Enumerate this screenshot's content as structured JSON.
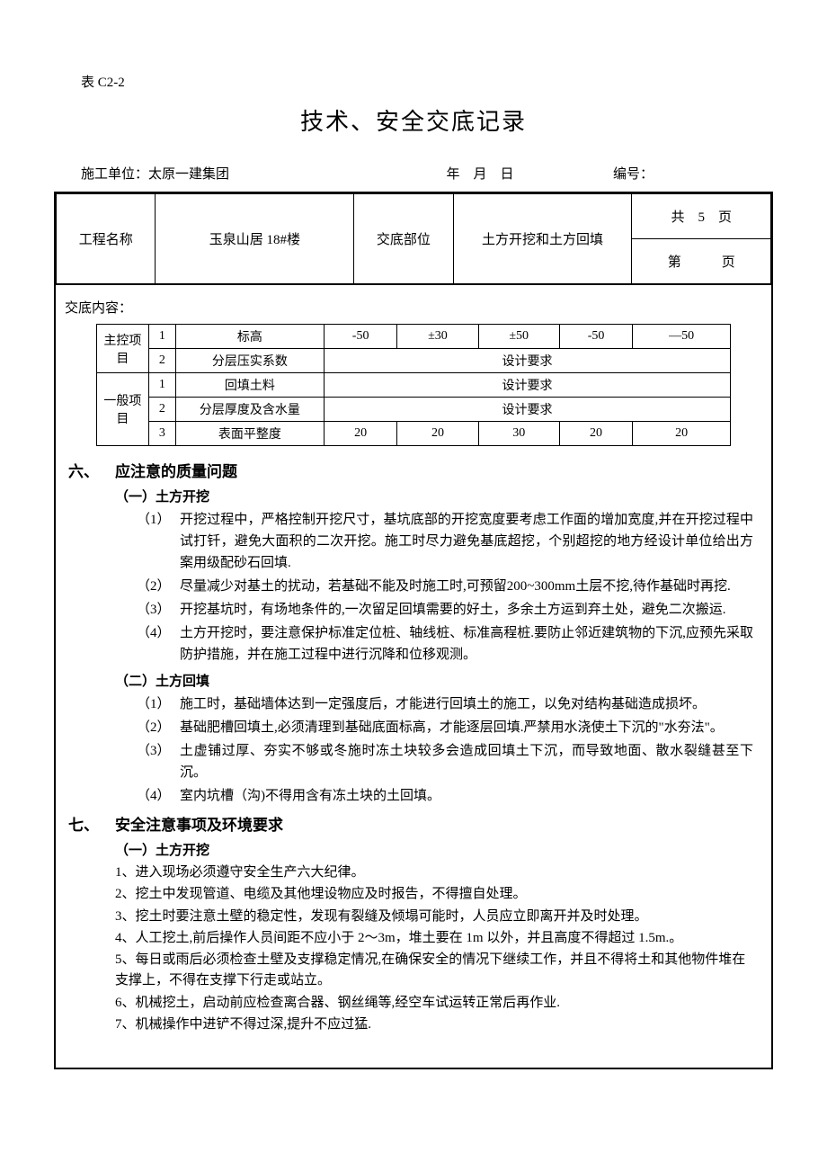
{
  "formCode": "表 C2-2",
  "title": "技术、安全交底记录",
  "infoRow": {
    "unitLabel": "施工单位：",
    "unitValue": "太原一建集团",
    "date": "年　月　日",
    "numberLabel": "编号："
  },
  "headerTable": {
    "projLabel": "工程名称",
    "projName": "玉泉山居 18#楼",
    "posLabel": "交底部位",
    "posValue": "土方开挖和土方回填",
    "pageTotal": "共　5　页",
    "pageCurrent": "第　　　页"
  },
  "contentLabel": "交底内容：",
  "evalTable": {
    "cat1": "主控项目",
    "cat2": "一般项目",
    "rows": [
      {
        "n": "1",
        "item": "标高",
        "vals": [
          "-50",
          "±30",
          "±50",
          "-50",
          "—50"
        ]
      },
      {
        "n": "2",
        "item": "分层压实系数",
        "span": "设计要求"
      },
      {
        "n": "1",
        "item": "回填土料",
        "span": "设计要求"
      },
      {
        "n": "2",
        "item": "分层厚度及含水量",
        "span": "设计要求"
      },
      {
        "n": "3",
        "item": "表面平整度",
        "vals": [
          "20",
          "20",
          "30",
          "20",
          "20"
        ]
      }
    ]
  },
  "section6": {
    "num": "六、",
    "heading": "应注意的质量问题",
    "sub1": "（一）土方开挖",
    "items1": [
      {
        "m": "（1）",
        "t": "开挖过程中，严格控制开挖尺寸，基坑底部的开挖宽度要考虑工作面的增加宽度,并在开挖过程中试打钎，避免大面积的二次开挖。施工时尽力避免基底超挖，个别超挖的地方经设计单位给出方案用级配砂石回填."
      },
      {
        "m": "（2）",
        "t": "尽量减少对基土的扰动，若基础不能及时施工时,可预留200~300mm土层不挖,待作基础时再挖."
      },
      {
        "m": "（3）",
        "t": "开挖基坑时，有场地条件的,一次留足回填需要的好土，多余土方运到弃土处，避免二次搬运."
      },
      {
        "m": "（4）",
        "t": "土方开挖时，要注意保护标准定位桩、轴线桩、标准高程桩.要防止邻近建筑物的下沉,应预先采取防护措施，并在施工过程中进行沉降和位移观测。"
      }
    ],
    "sub2": "（二）土方回填",
    "items2": [
      {
        "m": "（1）",
        "t": "施工时，基础墙体达到一定强度后，才能进行回填土的施工，以免对结构基础造成损坏。"
      },
      {
        "m": "（2）",
        "t": "基础肥槽回填土,必须清理到基础底面标高，才能逐层回填.严禁用水浇使土下沉的\"水夯法\"。"
      },
      {
        "m": "（3）",
        "t": "土虚铺过厚、夯实不够或冬施时冻土块较多会造成回填土下沉，而导致地面、散水裂缝甚至下沉。"
      },
      {
        "m": "（4）",
        "t": "室内坑槽（沟)不得用含有冻土块的土回填。"
      }
    ]
  },
  "section7": {
    "num": "七、",
    "heading": "安全注意事项及环境要求",
    "sub1": "（一）土方开挖",
    "lines": [
      "1、进入现场必须遵守安全生产六大纪律。",
      "2、挖土中发现管道、电缆及其他埋设物应及时报告，不得擅自处理。",
      "3、挖土时要注意土壁的稳定性，发现有裂缝及倾塌可能时，人员应立即离开并及时处理。",
      "4、人工挖土,前后操作人员间距不应小于 2～3m，堆土要在 1m 以外，并且高度不得超过 1.5m.。",
      "5、每日或雨后必须检查土壁及支撑稳定情况,在确保安全的情况下继续工作，并且不得将土和其他物件堆在支撑上，不得在支撑下行走或站立。",
      "6、机械挖土，启动前应检查离合器、钢丝绳等,经空车试运转正常后再作业.",
      "7、机械操作中进铲不得过深,提升不应过猛."
    ]
  }
}
